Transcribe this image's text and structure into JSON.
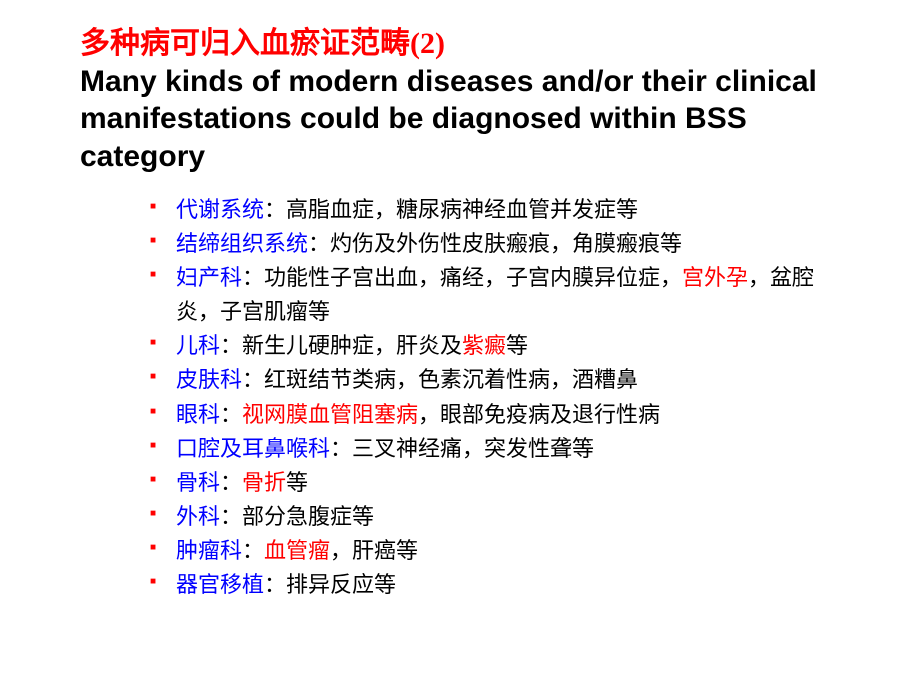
{
  "title": {
    "cn": "多种病可归入血瘀证范畴(2)",
    "en": "Many kinds of modern diseases and/or their clinical manifestations could be diagnosed within BSS category"
  },
  "colors": {
    "title_cn": "#ff0000",
    "title_en": "#000000",
    "bullet_marker": "#ff0000",
    "body_text": "#000000",
    "label_blue": "#0000ff",
    "highlight_red": "#ff0000",
    "background": "#ffffff"
  },
  "typography": {
    "title_fontsize": 30,
    "body_fontsize": 22,
    "title_weight": "bold",
    "cn_font": "SimSun",
    "en_font": "Arial"
  },
  "items": [
    {
      "segments": [
        {
          "text": "代谢系统",
          "color": "#0000ff"
        },
        {
          "text": "：高脂血症，糖尿病神经血管并发症等",
          "color": "#000000"
        }
      ]
    },
    {
      "segments": [
        {
          "text": "结缔组织系统",
          "color": "#0000ff"
        },
        {
          "text": "：灼伤及外伤性皮肤瘢痕，角膜瘢痕等",
          "color": "#000000"
        }
      ]
    },
    {
      "segments": [
        {
          "text": "妇产科",
          "color": "#0000ff"
        },
        {
          "text": "：功能性子宫出血，痛经，子宫内膜异位症，",
          "color": "#000000"
        },
        {
          "text": "宫外孕",
          "color": "#ff0000"
        },
        {
          "text": "，盆腔炎，子宫肌瘤等",
          "color": "#000000"
        }
      ]
    },
    {
      "segments": [
        {
          "text": "儿科",
          "color": "#0000ff"
        },
        {
          "text": "：新生儿硬肿症，肝炎及",
          "color": "#000000"
        },
        {
          "text": "紫癜",
          "color": "#ff0000"
        },
        {
          "text": "等",
          "color": "#000000"
        }
      ]
    },
    {
      "segments": [
        {
          "text": "皮肤科",
          "color": "#0000ff"
        },
        {
          "text": "：红斑结节类病，色素沉着性病，酒糟鼻",
          "color": "#000000"
        }
      ]
    },
    {
      "segments": [
        {
          "text": "眼科",
          "color": "#0000ff"
        },
        {
          "text": "：",
          "color": "#000000"
        },
        {
          "text": "视网膜血管阻塞病",
          "color": "#ff0000"
        },
        {
          "text": "，眼部免疫病及退行性病",
          "color": "#000000"
        }
      ]
    },
    {
      "segments": [
        {
          "text": "口腔及耳鼻喉科",
          "color": "#0000ff"
        },
        {
          "text": "：三叉神经痛，突发性聋等",
          "color": "#000000"
        }
      ]
    },
    {
      "segments": [
        {
          "text": "骨科",
          "color": "#0000ff"
        },
        {
          "text": "：",
          "color": "#000000"
        },
        {
          "text": "骨折",
          "color": "#ff0000"
        },
        {
          "text": "等",
          "color": "#000000"
        }
      ]
    },
    {
      "segments": [
        {
          "text": "外科",
          "color": "#0000ff"
        },
        {
          "text": "：部分急腹症等",
          "color": "#000000"
        }
      ]
    },
    {
      "segments": [
        {
          "text": "肿瘤科",
          "color": "#0000ff"
        },
        {
          "text": "：",
          "color": "#000000"
        },
        {
          "text": "血管瘤",
          "color": "#ff0000"
        },
        {
          "text": "，肝癌等",
          "color": "#000000"
        }
      ]
    },
    {
      "segments": [
        {
          "text": "器官移植",
          "color": "#0000ff"
        },
        {
          "text": "：排异反应等",
          "color": "#000000"
        }
      ]
    }
  ]
}
